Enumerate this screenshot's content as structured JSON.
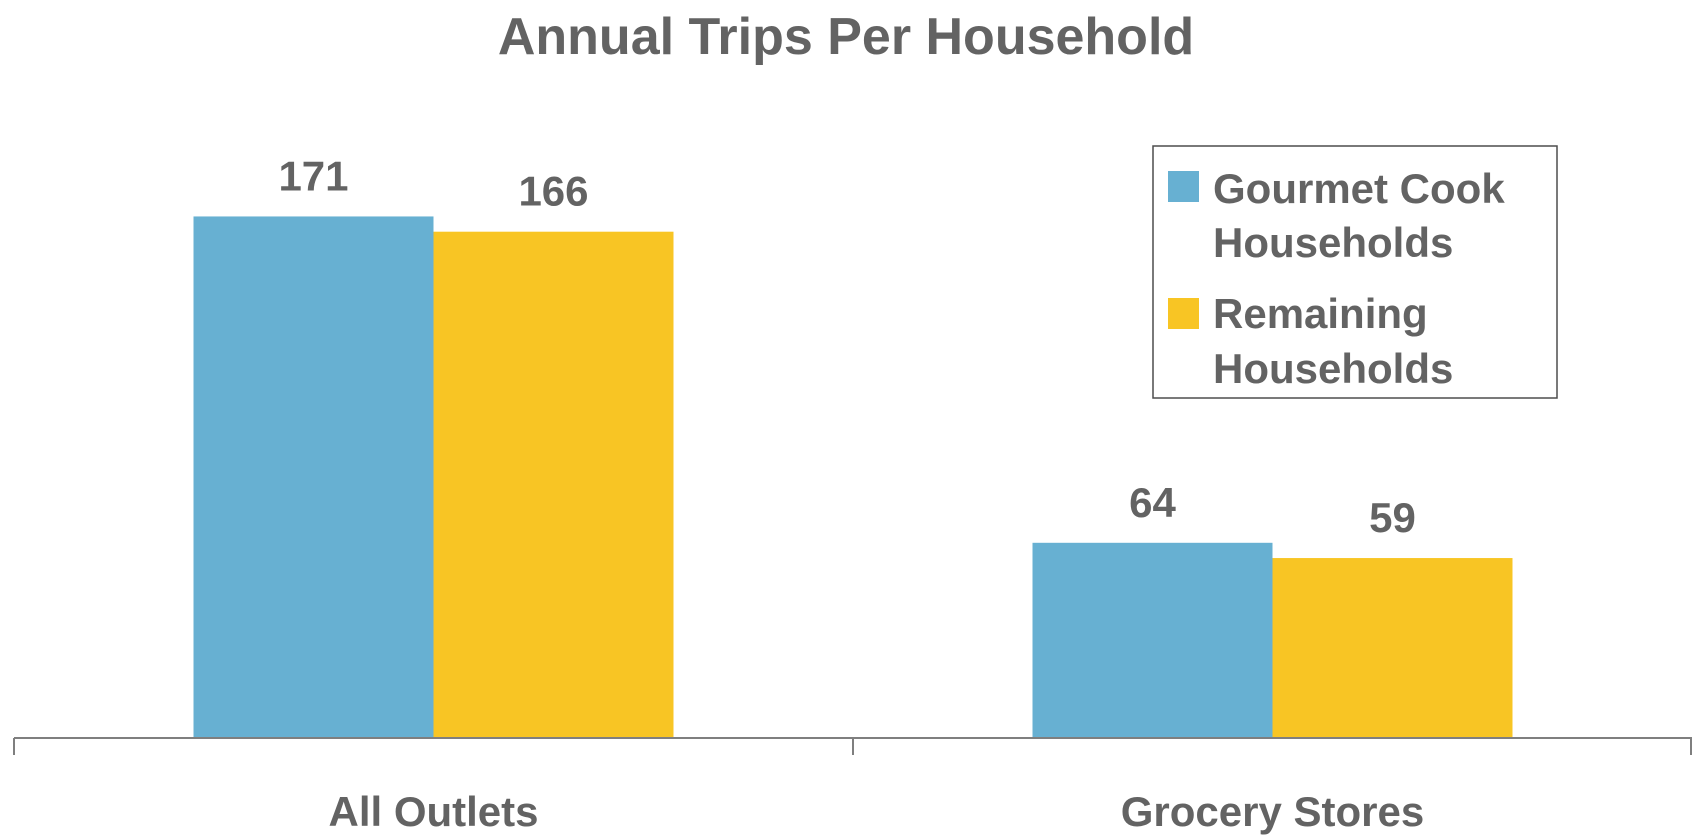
{
  "chart_data": {
    "type": "bar",
    "title": "Annual Trips Per Household",
    "xlabel": "",
    "ylabel": "",
    "categories": [
      "All Outlets",
      "Grocery Stores"
    ],
    "series": [
      {
        "name": "Gourmet Cook Households",
        "legend_lines": [
          "Gourmet Cook",
          "Households"
        ],
        "color": "#67B0D2",
        "values": [
          171,
          64
        ],
        "labels": [
          "171",
          "64"
        ]
      },
      {
        "name": "Remaining Households",
        "legend_lines": [
          "Remaining",
          "Households"
        ],
        "color": "#F8C524",
        "values": [
          166,
          59
        ],
        "labels": [
          "166",
          "59"
        ]
      }
    ],
    "ylim": [
      0,
      190
    ],
    "grid": false,
    "legend_position": "top-right",
    "axis_color": "#7F7F7F"
  }
}
